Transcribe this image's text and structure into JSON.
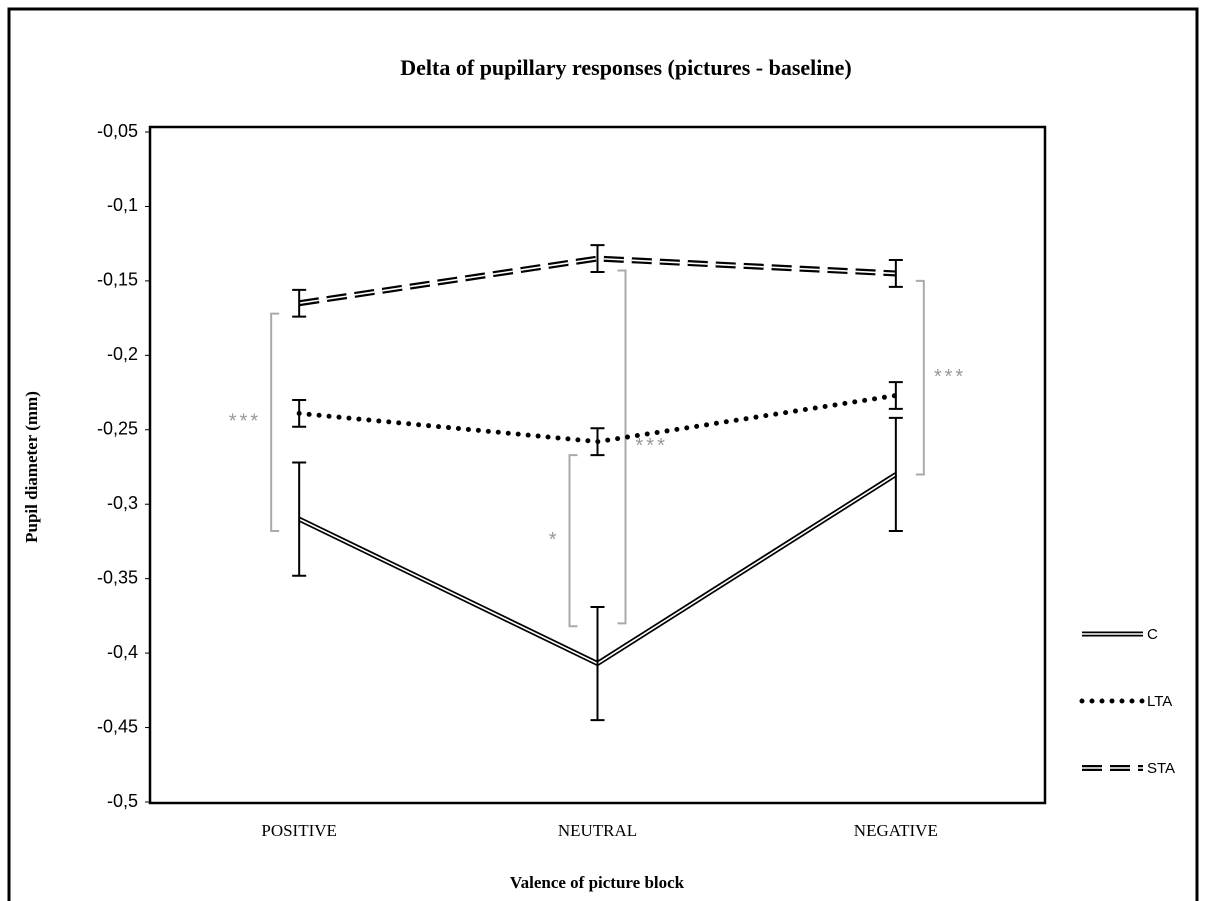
{
  "chart_data": {
    "type": "line",
    "title": "Delta of pupillary responses (pictures - baseline)",
    "y_label": "Pupil diameter (mm)",
    "x_label": "Valence of picture block",
    "categories": [
      "POSITIVE",
      "NEUTRAL",
      "NEGATIVE"
    ],
    "ylim": [
      -0.5,
      -0.05
    ],
    "yticks": [
      {
        "value": -0.05,
        "label": "-0,05"
      },
      {
        "value": -0.1,
        "label": "-0,1"
      },
      {
        "value": -0.15,
        "label": "-0,15"
      },
      {
        "value": -0.2,
        "label": "-0,2"
      },
      {
        "value": -0.25,
        "label": "-0,25"
      },
      {
        "value": -0.3,
        "label": "-0,3"
      },
      {
        "value": -0.35,
        "label": "-0,35"
      },
      {
        "value": -0.4,
        "label": "-0,4"
      },
      {
        "value": -0.45,
        "label": "-0,45"
      },
      {
        "value": -0.5,
        "label": "-0,5"
      }
    ],
    "grid": false,
    "legend": "right",
    "series": [
      {
        "name": "C",
        "color": "#000000",
        "style": "double",
        "values": [
          -0.31,
          -0.407,
          -0.28
        ],
        "errors": [
          0.038,
          0.038,
          0.038
        ]
      },
      {
        "name": "LTA",
        "color": "#000000",
        "style": "dotted",
        "values": [
          -0.239,
          -0.258,
          -0.227
        ],
        "errors": [
          0.009,
          0.009,
          0.009
        ]
      },
      {
        "name": "STA",
        "color": "#000000",
        "style": "double-dashed",
        "values": [
          -0.165,
          -0.135,
          -0.145
        ],
        "errors": [
          0.009,
          0.009,
          0.009
        ]
      }
    ],
    "annotations": [
      {
        "text": "***",
        "category": 0,
        "side": "left",
        "from": -0.172,
        "to": -0.318
      },
      {
        "text": "*",
        "category": 1,
        "side": "left",
        "from": -0.267,
        "to": -0.382
      },
      {
        "text": "***",
        "category": 1,
        "side": "right",
        "from": -0.143,
        "to": -0.38
      },
      {
        "text": "***",
        "category": 2,
        "side": "right",
        "from": -0.15,
        "to": -0.28
      }
    ]
  }
}
